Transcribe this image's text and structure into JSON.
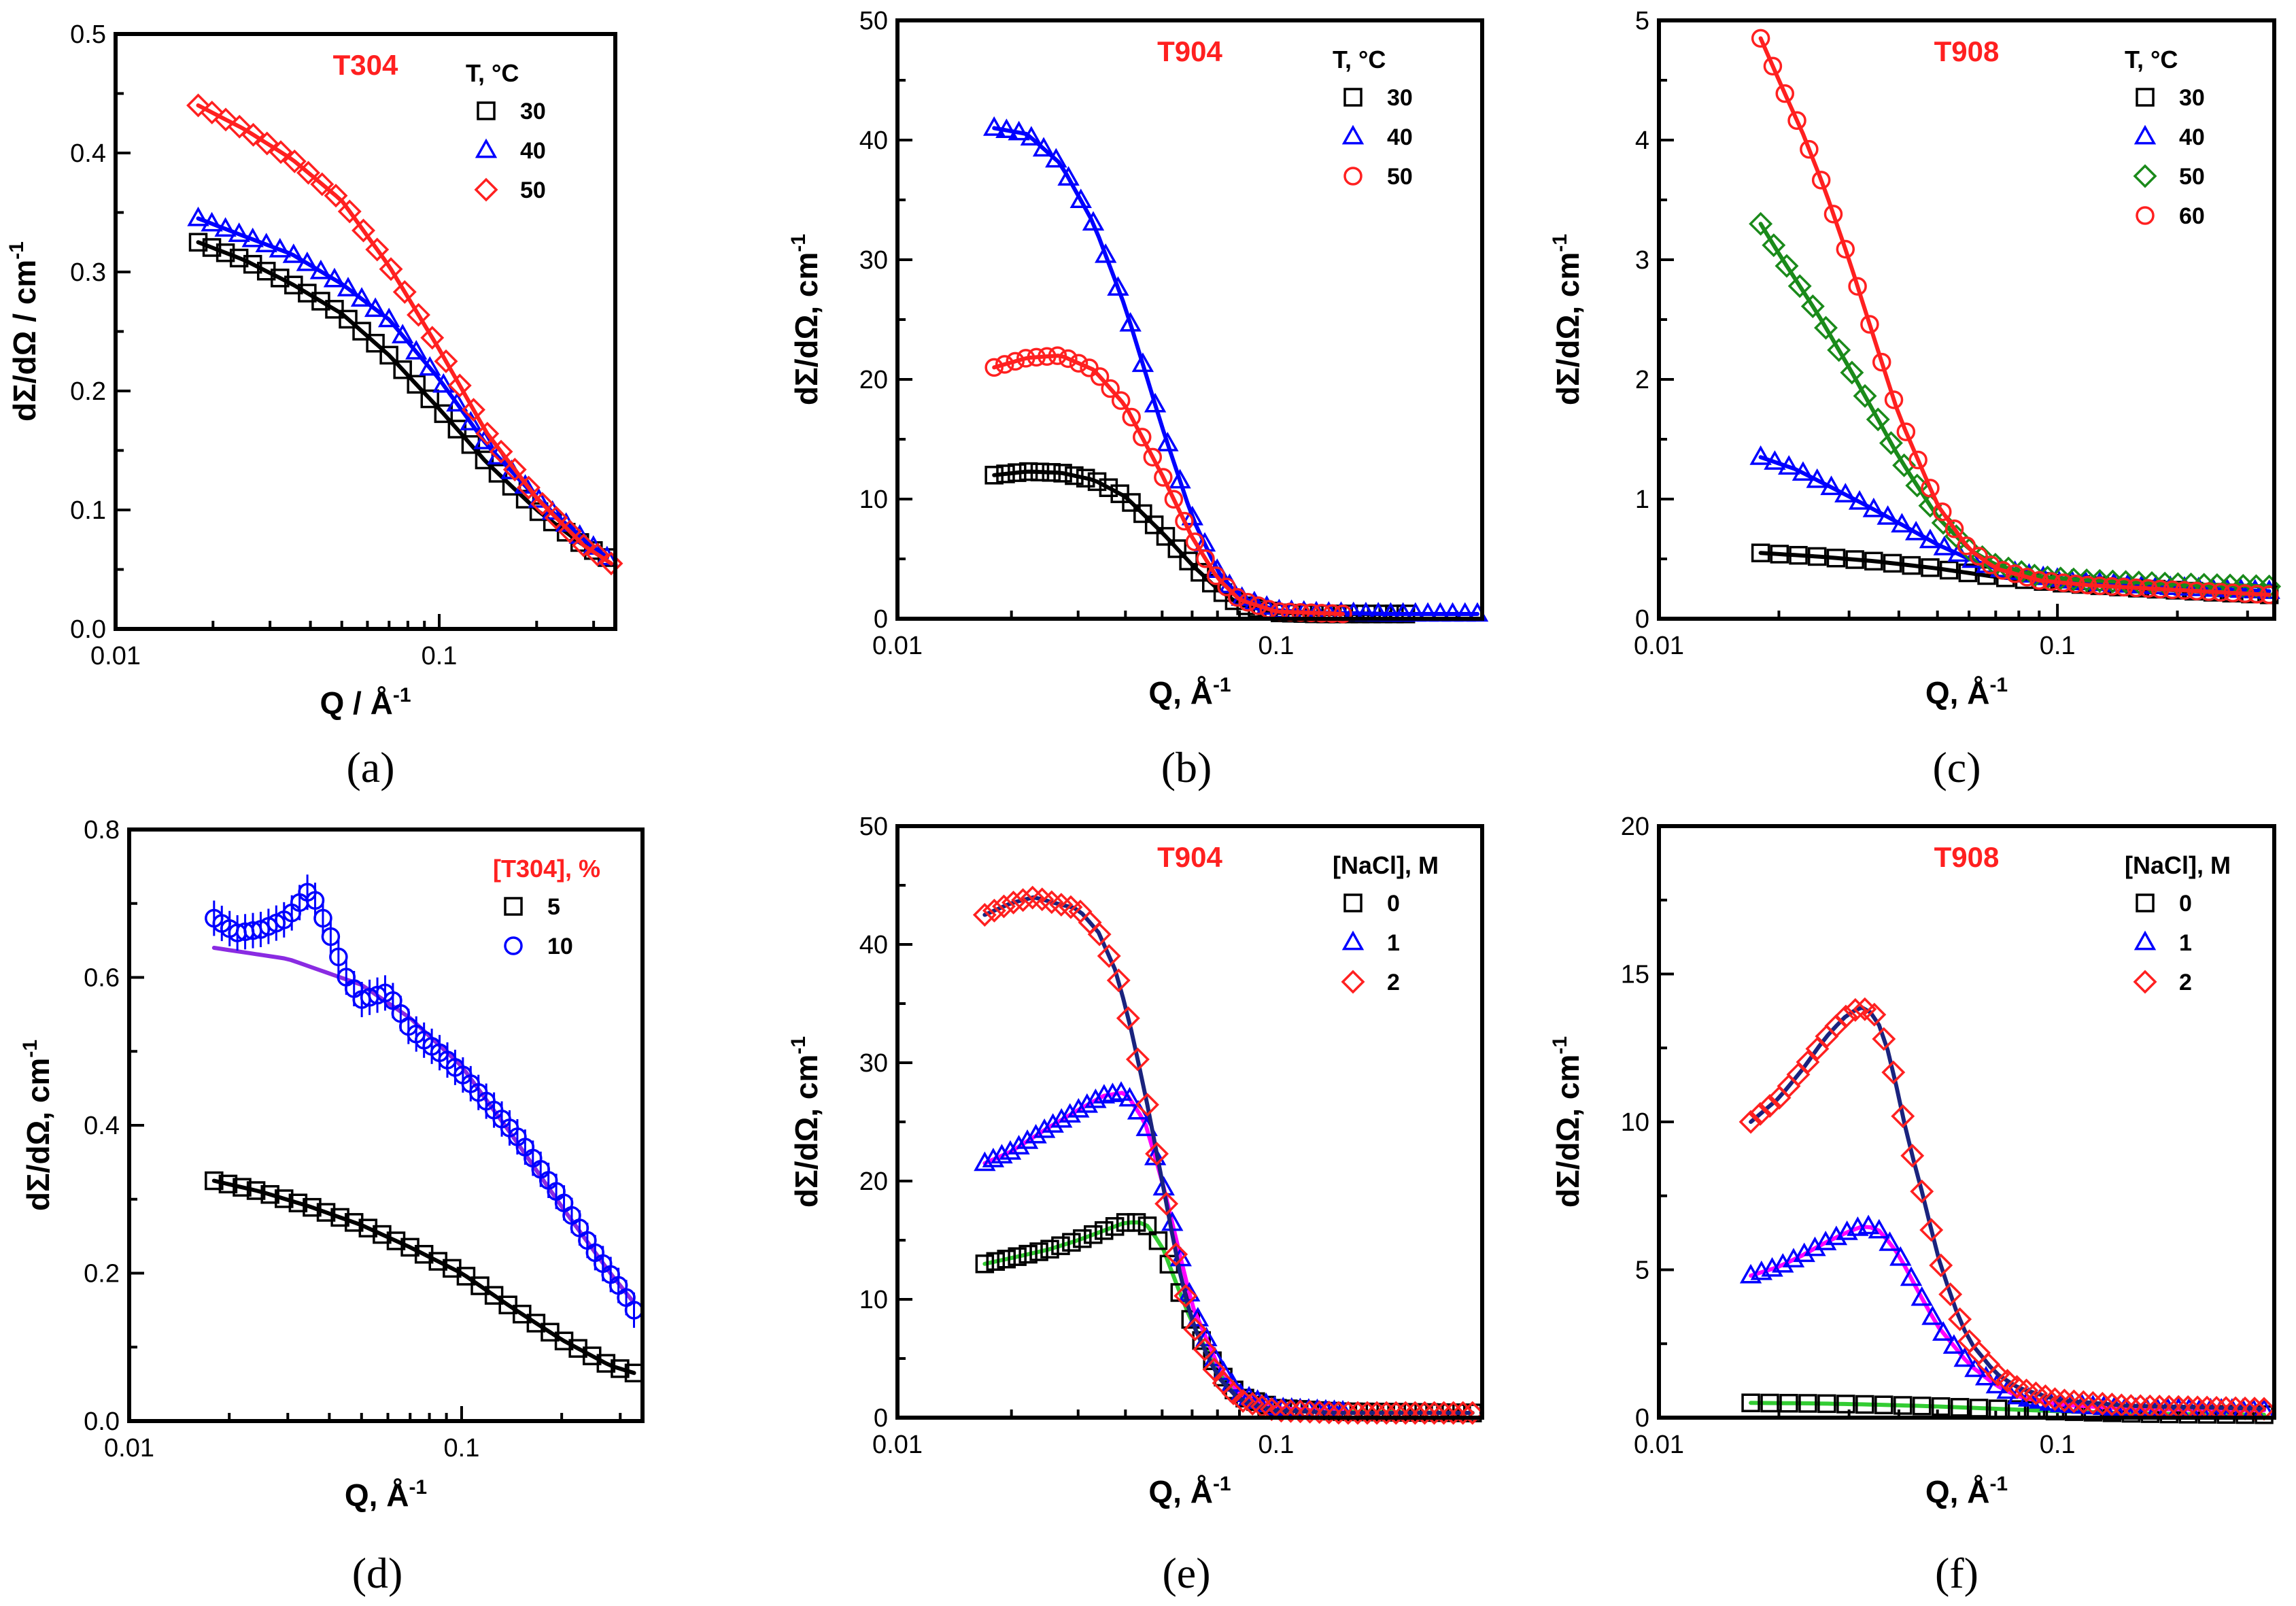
{
  "chart_data": [
    {
      "type": "scatter",
      "letter": "(a)",
      "title": "T304",
      "xlabel": "Q / Å",
      "xlabel_sup": "-1",
      "ylabel": "dΣ/dΩ / cm",
      "ylabel_sup": "-1",
      "xscale": "log",
      "xlim": [
        0.01,
        0.35
      ],
      "ylim": [
        0,
        0.5
      ],
      "yticks": [
        0.0,
        0.1,
        0.2,
        0.3,
        0.4,
        0.5
      ],
      "ytick_labels": [
        "0.0",
        "0.1",
        "0.2",
        "0.3",
        "0.4",
        "0.5"
      ],
      "xticks": [
        0.01,
        0.1
      ],
      "xtick_labels": [
        "0.01",
        "0.1"
      ],
      "legend_title": "T, °C",
      "legend_position": "top-right",
      "series": [
        {
          "name": "30",
          "color": "#000000",
          "marker": "square",
          "fit_color": "#000000",
          "q0": 0.018,
          "q1": 0.33,
          "x": [
            0.018,
            0.025,
            0.035,
            0.05,
            0.07,
            0.1,
            0.14,
            0.2,
            0.28,
            0.33
          ],
          "y": [
            0.325,
            0.31,
            0.29,
            0.265,
            0.23,
            0.185,
            0.14,
            0.1,
            0.07,
            0.06
          ]
        },
        {
          "name": "40",
          "color": "#0000ff",
          "marker": "triangle",
          "fit_color": "#0000ff",
          "q0": 0.018,
          "q1": 0.33,
          "x": [
            0.018,
            0.025,
            0.035,
            0.05,
            0.07,
            0.1,
            0.14,
            0.2,
            0.28,
            0.33
          ],
          "y": [
            0.345,
            0.33,
            0.315,
            0.29,
            0.26,
            0.21,
            0.155,
            0.11,
            0.075,
            0.06
          ]
        },
        {
          "name": "50",
          "color": "#ff2020",
          "marker": "diamond",
          "fit_color": "#ff2020",
          "q0": 0.018,
          "q1": 0.34,
          "x": [
            0.018,
            0.025,
            0.035,
            0.05,
            0.07,
            0.1,
            0.14,
            0.2,
            0.28,
            0.34
          ],
          "y": [
            0.44,
            0.42,
            0.395,
            0.36,
            0.305,
            0.235,
            0.165,
            0.11,
            0.07,
            0.055
          ]
        }
      ]
    },
    {
      "type": "scatter",
      "letter": "(b)",
      "title": "T904",
      "xlabel": "Q, Å",
      "xlabel_sup": "-1",
      "ylabel": "dΣ/dΩ, cm",
      "ylabel_sup": "-1",
      "xscale": "log",
      "xlim": [
        0.01,
        0.35
      ],
      "ylim": [
        0,
        50
      ],
      "yticks": [
        0,
        10,
        20,
        30,
        40,
        50
      ],
      "ytick_labels": [
        "0",
        "10",
        "20",
        "30",
        "40",
        "50"
      ],
      "xticks": [
        0.01,
        0.1
      ],
      "xtick_labels": [
        "0.01",
        "0.1"
      ],
      "legend_title": "T, °C",
      "legend_position": "top-right",
      "series": [
        {
          "name": "30",
          "color": "#000000",
          "marker": "square",
          "fit_color": "#000000",
          "q0": 0.018,
          "q1": 0.22,
          "x": [
            0.018,
            0.022,
            0.027,
            0.033,
            0.04,
            0.05,
            0.06,
            0.07,
            0.08,
            0.1,
            0.13,
            0.22
          ],
          "y": [
            12,
            12.3,
            12.2,
            11.6,
            10.2,
            7.2,
            4.5,
            2.5,
            1.2,
            0.5,
            0.4,
            0.4
          ]
        },
        {
          "name": "40",
          "color": "#0000ff",
          "marker": "triangle",
          "fit_color": "#0000ff",
          "q0": 0.018,
          "q1": 0.34,
          "x": [
            0.018,
            0.022,
            0.027,
            0.033,
            0.04,
            0.05,
            0.06,
            0.07,
            0.08,
            0.1,
            0.13,
            0.2,
            0.34
          ],
          "y": [
            41,
            40.5,
            38,
            33,
            26,
            16,
            8.5,
            4,
            1.8,
            0.7,
            0.5,
            0.4,
            0.4
          ]
        },
        {
          "name": "50",
          "color": "#ff2020",
          "marker": "circle",
          "fit_color": "#ff2020",
          "q0": 0.018,
          "q1": 0.15,
          "x": [
            0.018,
            0.022,
            0.027,
            0.033,
            0.04,
            0.05,
            0.06,
            0.07,
            0.08,
            0.1,
            0.15
          ],
          "y": [
            21,
            21.8,
            22,
            20.8,
            17.8,
            12,
            6.8,
            3.4,
            1.6,
            0.6,
            0.4
          ]
        }
      ]
    },
    {
      "type": "scatter",
      "letter": "(c)",
      "title": "T908",
      "xlabel": "Q, Å",
      "xlabel_sup": "-1",
      "ylabel": "dΣ/dΩ,  cm",
      "ylabel_sup": "-1",
      "xscale": "log",
      "xlim": [
        0.01,
        0.35
      ],
      "ylim": [
        0,
        5
      ],
      "yticks": [
        0,
        1,
        2,
        3,
        4,
        5
      ],
      "ytick_labels": [
        "0",
        "1",
        "2",
        "3",
        "4",
        "5"
      ],
      "xticks": [
        0.01,
        0.1
      ],
      "xtick_labels": [
        "0.01",
        "0.1"
      ],
      "legend_title": "T, °C",
      "legend_position": "top-right",
      "series": [
        {
          "name": "30",
          "color": "#000000",
          "marker": "square",
          "fit_color": "#000000",
          "q0": 0.018,
          "q1": 0.34,
          "x": [
            0.018,
            0.025,
            0.035,
            0.05,
            0.07,
            0.1,
            0.15,
            0.25,
            0.34
          ],
          "y": [
            0.55,
            0.52,
            0.48,
            0.42,
            0.35,
            0.3,
            0.26,
            0.22,
            0.2
          ]
        },
        {
          "name": "40",
          "color": "#0000ff",
          "marker": "triangle",
          "fit_color": "#0000ff",
          "q0": 0.018,
          "q1": 0.34,
          "x": [
            0.018,
            0.022,
            0.027,
            0.033,
            0.04,
            0.05,
            0.06,
            0.07,
            0.09,
            0.12,
            0.2,
            0.34
          ],
          "y": [
            1.35,
            1.25,
            1.1,
            0.95,
            0.8,
            0.62,
            0.5,
            0.42,
            0.35,
            0.3,
            0.26,
            0.23
          ]
        },
        {
          "name": "50",
          "color": "#1a8a1a",
          "marker": "diamond",
          "fit_color": "#1a8a1a",
          "q0": 0.018,
          "q1": 0.34,
          "x": [
            0.018,
            0.02,
            0.025,
            0.03,
            0.035,
            0.04,
            0.05,
            0.06,
            0.07,
            0.09,
            0.12,
            0.2,
            0.34
          ],
          "y": [
            3.3,
            3.05,
            2.55,
            2.1,
            1.7,
            1.35,
            0.85,
            0.58,
            0.45,
            0.35,
            0.32,
            0.29,
            0.27
          ]
        },
        {
          "name": "60",
          "color": "#ff2020",
          "marker": "circle",
          "fit_color": "#ff2020",
          "q0": 0.018,
          "q1": 0.34,
          "x": [
            0.018,
            0.02,
            0.023,
            0.026,
            0.03,
            0.035,
            0.04,
            0.05,
            0.06,
            0.07,
            0.09,
            0.12,
            0.2,
            0.34
          ],
          "y": [
            4.85,
            4.5,
            4.05,
            3.6,
            3.0,
            2.3,
            1.7,
            0.95,
            0.58,
            0.42,
            0.32,
            0.28,
            0.24,
            0.2
          ]
        }
      ]
    },
    {
      "type": "scatter",
      "letter": "(d)",
      "title": "",
      "xlabel": "Q, Å",
      "xlabel_sup": "-1",
      "ylabel": "dΣ/dΩ, cm",
      "ylabel_sup": "-1",
      "xscale": "log",
      "xlim": [
        0.01,
        0.35
      ],
      "ylim": [
        0,
        0.8
      ],
      "yticks": [
        0.0,
        0.2,
        0.4,
        0.6,
        0.8
      ],
      "ytick_labels": [
        "0.0",
        "0.2",
        "0.4",
        "0.6",
        "0.8"
      ],
      "xticks": [
        0.01,
        0.1
      ],
      "xtick_labels": [
        "0.01",
        "0.1"
      ],
      "legend_title": "[T304], %",
      "legend_title_color": "#ff2020",
      "legend_position": "top-right",
      "series": [
        {
          "name": "5",
          "color": "#000000",
          "marker": "square",
          "fit_color": "#000000",
          "q0": 0.018,
          "q1": 0.33,
          "x": [
            0.018,
            0.025,
            0.035,
            0.05,
            0.07,
            0.1,
            0.14,
            0.2,
            0.28,
            0.33
          ],
          "y": [
            0.325,
            0.31,
            0.29,
            0.265,
            0.235,
            0.2,
            0.155,
            0.11,
            0.075,
            0.065
          ]
        },
        {
          "name": "10",
          "color": "#0000ff",
          "marker": "circle",
          "fit_color": "#8a2be2",
          "q0": 0.018,
          "q1": 0.33,
          "x": [
            0.018,
            0.021,
            0.025,
            0.03,
            0.035,
            0.04,
            0.045,
            0.05,
            0.06,
            0.07,
            0.085,
            0.1,
            0.12,
            0.15,
            0.2,
            0.25,
            0.3,
            0.33
          ],
          "y": [
            0.68,
            0.66,
            0.665,
            0.68,
            0.72,
            0.66,
            0.6,
            0.57,
            0.58,
            0.53,
            0.5,
            0.47,
            0.43,
            0.38,
            0.3,
            0.23,
            0.18,
            0.15
          ],
          "fit_x": [
            0.018,
            0.03,
            0.05,
            0.07,
            0.1,
            0.14,
            0.2,
            0.28,
            0.33
          ],
          "fit_y": [
            0.64,
            0.625,
            0.59,
            0.545,
            0.48,
            0.39,
            0.29,
            0.2,
            0.16
          ],
          "error_bars": true
        }
      ]
    },
    {
      "type": "scatter",
      "letter": "(e)",
      "title": "T904",
      "xlabel": "Q, Å",
      "xlabel_sup": "-1",
      "ylabel": "dΣ/dΩ, cm",
      "ylabel_sup": "-1",
      "xscale": "log",
      "xlim": [
        0.01,
        0.35
      ],
      "ylim": [
        0,
        50
      ],
      "yticks": [
        0,
        10,
        20,
        30,
        40,
        50
      ],
      "ytick_labels": [
        "0",
        "10",
        "20",
        "30",
        "40",
        "50"
      ],
      "xticks": [
        0.01,
        0.1
      ],
      "xtick_labels": [
        "0.01",
        "0.1"
      ],
      "legend_title": "[NaCl], M",
      "legend_position": "top-right",
      "series": [
        {
          "name": "0",
          "color": "#000000",
          "marker": "square",
          "fit_color": "#33cc33",
          "q0": 0.017,
          "q1": 0.33,
          "x": [
            0.017,
            0.02,
            0.025,
            0.03,
            0.035,
            0.04,
            0.045,
            0.05,
            0.055,
            0.06,
            0.07,
            0.08,
            0.1,
            0.15,
            0.33
          ],
          "y": [
            13,
            13.5,
            14.2,
            15,
            15.8,
            16.5,
            16.5,
            14.5,
            11,
            8,
            4,
            1.8,
            0.8,
            0.5,
            0.4
          ]
        },
        {
          "name": "1",
          "color": "#0000ff",
          "marker": "triangle",
          "fit_color": "#ff00ff",
          "q0": 0.017,
          "q1": 0.15,
          "x": [
            0.017,
            0.02,
            0.025,
            0.03,
            0.035,
            0.04,
            0.045,
            0.05,
            0.055,
            0.06,
            0.07,
            0.08,
            0.1,
            0.15
          ],
          "y": [
            21.5,
            22.5,
            24.5,
            26,
            27.2,
            27.5,
            25,
            20,
            14.5,
            9.5,
            4.5,
            2,
            0.8,
            0.5
          ]
        },
        {
          "name": "2",
          "color": "#ff2020",
          "marker": "diamond",
          "fit_color": "#1a237e",
          "q0": 0.017,
          "q1": 0.33,
          "x": [
            0.017,
            0.02,
            0.023,
            0.026,
            0.03,
            0.034,
            0.038,
            0.042,
            0.046,
            0.05,
            0.055,
            0.06,
            0.07,
            0.08,
            0.1,
            0.15,
            0.33
          ],
          "y": [
            42.5,
            43.5,
            44,
            43.5,
            43,
            41,
            37.5,
            32,
            26,
            20,
            13,
            8,
            3.5,
            1.5,
            0.6,
            0.4,
            0.4
          ]
        }
      ]
    },
    {
      "type": "scatter",
      "letter": "(f)",
      "title": "T908",
      "xlabel": "Q, Å",
      "xlabel_sup": "-1",
      "ylabel": "dΣ/dΩ, cm",
      "ylabel_sup": "-1",
      "xscale": "log",
      "xlim": [
        0.01,
        0.35
      ],
      "ylim": [
        0,
        20
      ],
      "yticks": [
        0,
        5,
        10,
        15,
        20
      ],
      "ytick_labels": [
        "0",
        "5",
        "10",
        "15",
        "20"
      ],
      "xticks": [
        0.01,
        0.1
      ],
      "xtick_labels": [
        "0.01",
        "0.1"
      ],
      "legend_title": "[NaCl], M",
      "legend_position": "top-right",
      "series": [
        {
          "name": "0",
          "color": "#000000",
          "marker": "square",
          "fit_color": "#33cc33",
          "q0": 0.017,
          "q1": 0.33,
          "x": [
            0.017,
            0.025,
            0.035,
            0.05,
            0.07,
            0.1,
            0.15,
            0.2,
            0.33
          ],
          "y": [
            0.5,
            0.48,
            0.44,
            0.38,
            0.3,
            0.22,
            0.15,
            0.12,
            0.1
          ]
        },
        {
          "name": "1",
          "color": "#0000ff",
          "marker": "triangle",
          "fit_color": "#ff00ff",
          "q0": 0.017,
          "q1": 0.33,
          "x": [
            0.017,
            0.02,
            0.023,
            0.026,
            0.03,
            0.033,
            0.036,
            0.04,
            0.045,
            0.05,
            0.06,
            0.07,
            0.08,
            0.1,
            0.15,
            0.33
          ],
          "y": [
            4.8,
            5.1,
            5.5,
            5.9,
            6.3,
            6.5,
            6.3,
            5.5,
            4.2,
            3.1,
            1.8,
            1.1,
            0.7,
            0.45,
            0.3,
            0.25
          ]
        },
        {
          "name": "2",
          "color": "#ff2020",
          "marker": "diamond",
          "fit_color": "#1a237e",
          "q0": 0.017,
          "q1": 0.33,
          "x": [
            0.017,
            0.02,
            0.023,
            0.026,
            0.029,
            0.032,
            0.035,
            0.038,
            0.042,
            0.046,
            0.05,
            0.055,
            0.06,
            0.07,
            0.08,
            0.1,
            0.15,
            0.33
          ],
          "y": [
            10,
            10.8,
            11.8,
            12.8,
            13.5,
            13.9,
            13.6,
            12.2,
            9.5,
            7.5,
            5.5,
            3.8,
            2.6,
            1.5,
            1.0,
            0.6,
            0.4,
            0.3
          ]
        }
      ]
    }
  ]
}
